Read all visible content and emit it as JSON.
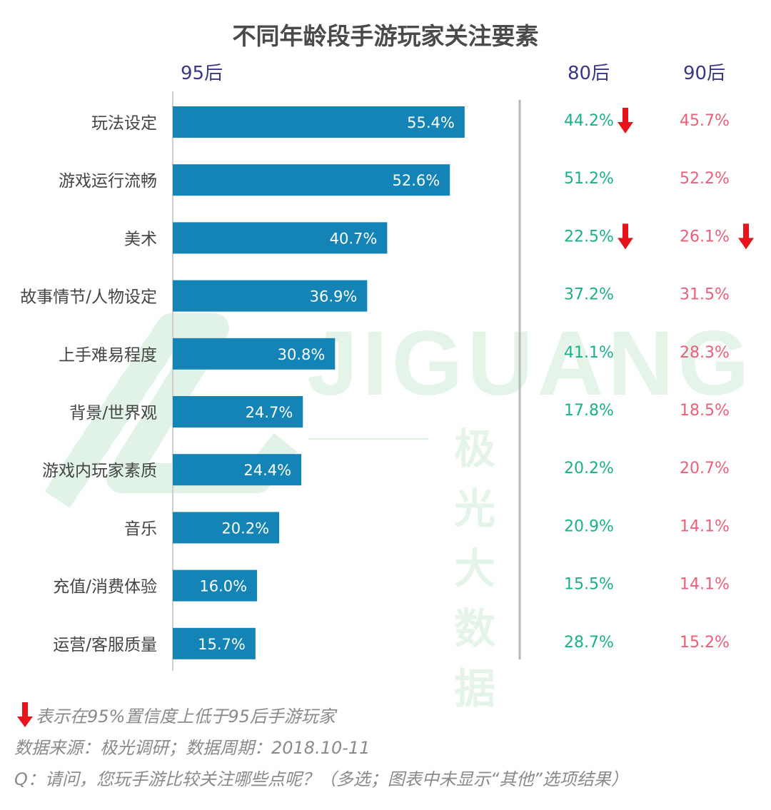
{
  "chart_data": {
    "type": "bar",
    "title": "不同年龄段手游玩家关注要素",
    "categories": [
      "玩法设定",
      "游戏运行流畅",
      "美术",
      "故事情节/人物设定",
      "上手难易程度",
      "背景/世界观",
      "游戏内玩家素质",
      "音乐",
      "充值/消费体验",
      "运营/客服质量"
    ],
    "series": [
      {
        "name": "95后",
        "values": [
          55.4,
          52.6,
          40.7,
          36.9,
          30.8,
          24.7,
          24.4,
          20.2,
          16.0,
          15.7
        ],
        "labels": [
          "55.4%",
          "52.6%",
          "40.7%",
          "36.9%",
          "30.8%",
          "24.7%",
          "24.4%",
          "20.2%",
          "16.0%",
          "15.7%"
        ],
        "color": "#1384b5"
      },
      {
        "name": "80后",
        "values": [
          44.2,
          51.2,
          22.5,
          37.2,
          41.1,
          17.8,
          20.2,
          20.9,
          15.5,
          28.7
        ],
        "labels": [
          "44.2%",
          "51.2%",
          "22.5%",
          "37.2%",
          "41.1%",
          "17.8%",
          "20.2%",
          "20.9%",
          "15.5%",
          "28.7%"
        ],
        "significant_lower": [
          true,
          false,
          true,
          false,
          false,
          false,
          false,
          false,
          false,
          false
        ],
        "color": "#1ab08a"
      },
      {
        "name": "90后",
        "values": [
          45.7,
          52.2,
          26.1,
          31.5,
          28.3,
          18.5,
          20.7,
          14.1,
          14.1,
          15.2
        ],
        "labels": [
          "45.7%",
          "52.2%",
          "26.1%",
          "31.5%",
          "28.3%",
          "18.5%",
          "20.7%",
          "14.1%",
          "14.1%",
          "15.2%"
        ],
        "significant_lower": [
          false,
          false,
          true,
          false,
          false,
          false,
          false,
          false,
          false,
          false
        ],
        "color": "#e8607a"
      }
    ],
    "xlim": [
      0,
      100
    ],
    "unit": "%"
  },
  "headers": {
    "col_95": "95后",
    "col_80": "80后",
    "col_90": "90后"
  },
  "watermark": {
    "brand": "JIGUANG",
    "sub": "极光大数据"
  },
  "footer": {
    "legend_note": "表示在95%置信度上低于95后手游玩家",
    "source": "数据来源：极光调研；数据周期：2018.10-11",
    "question": "Q：请问，您玩手游比较关注哪些点呢？（多选；图表中未显示“其他”选项结果）"
  },
  "colors": {
    "bar": "#1384b5",
    "green": "#1ab08a",
    "pink": "#e8607a",
    "arrow": "#e8141b"
  }
}
